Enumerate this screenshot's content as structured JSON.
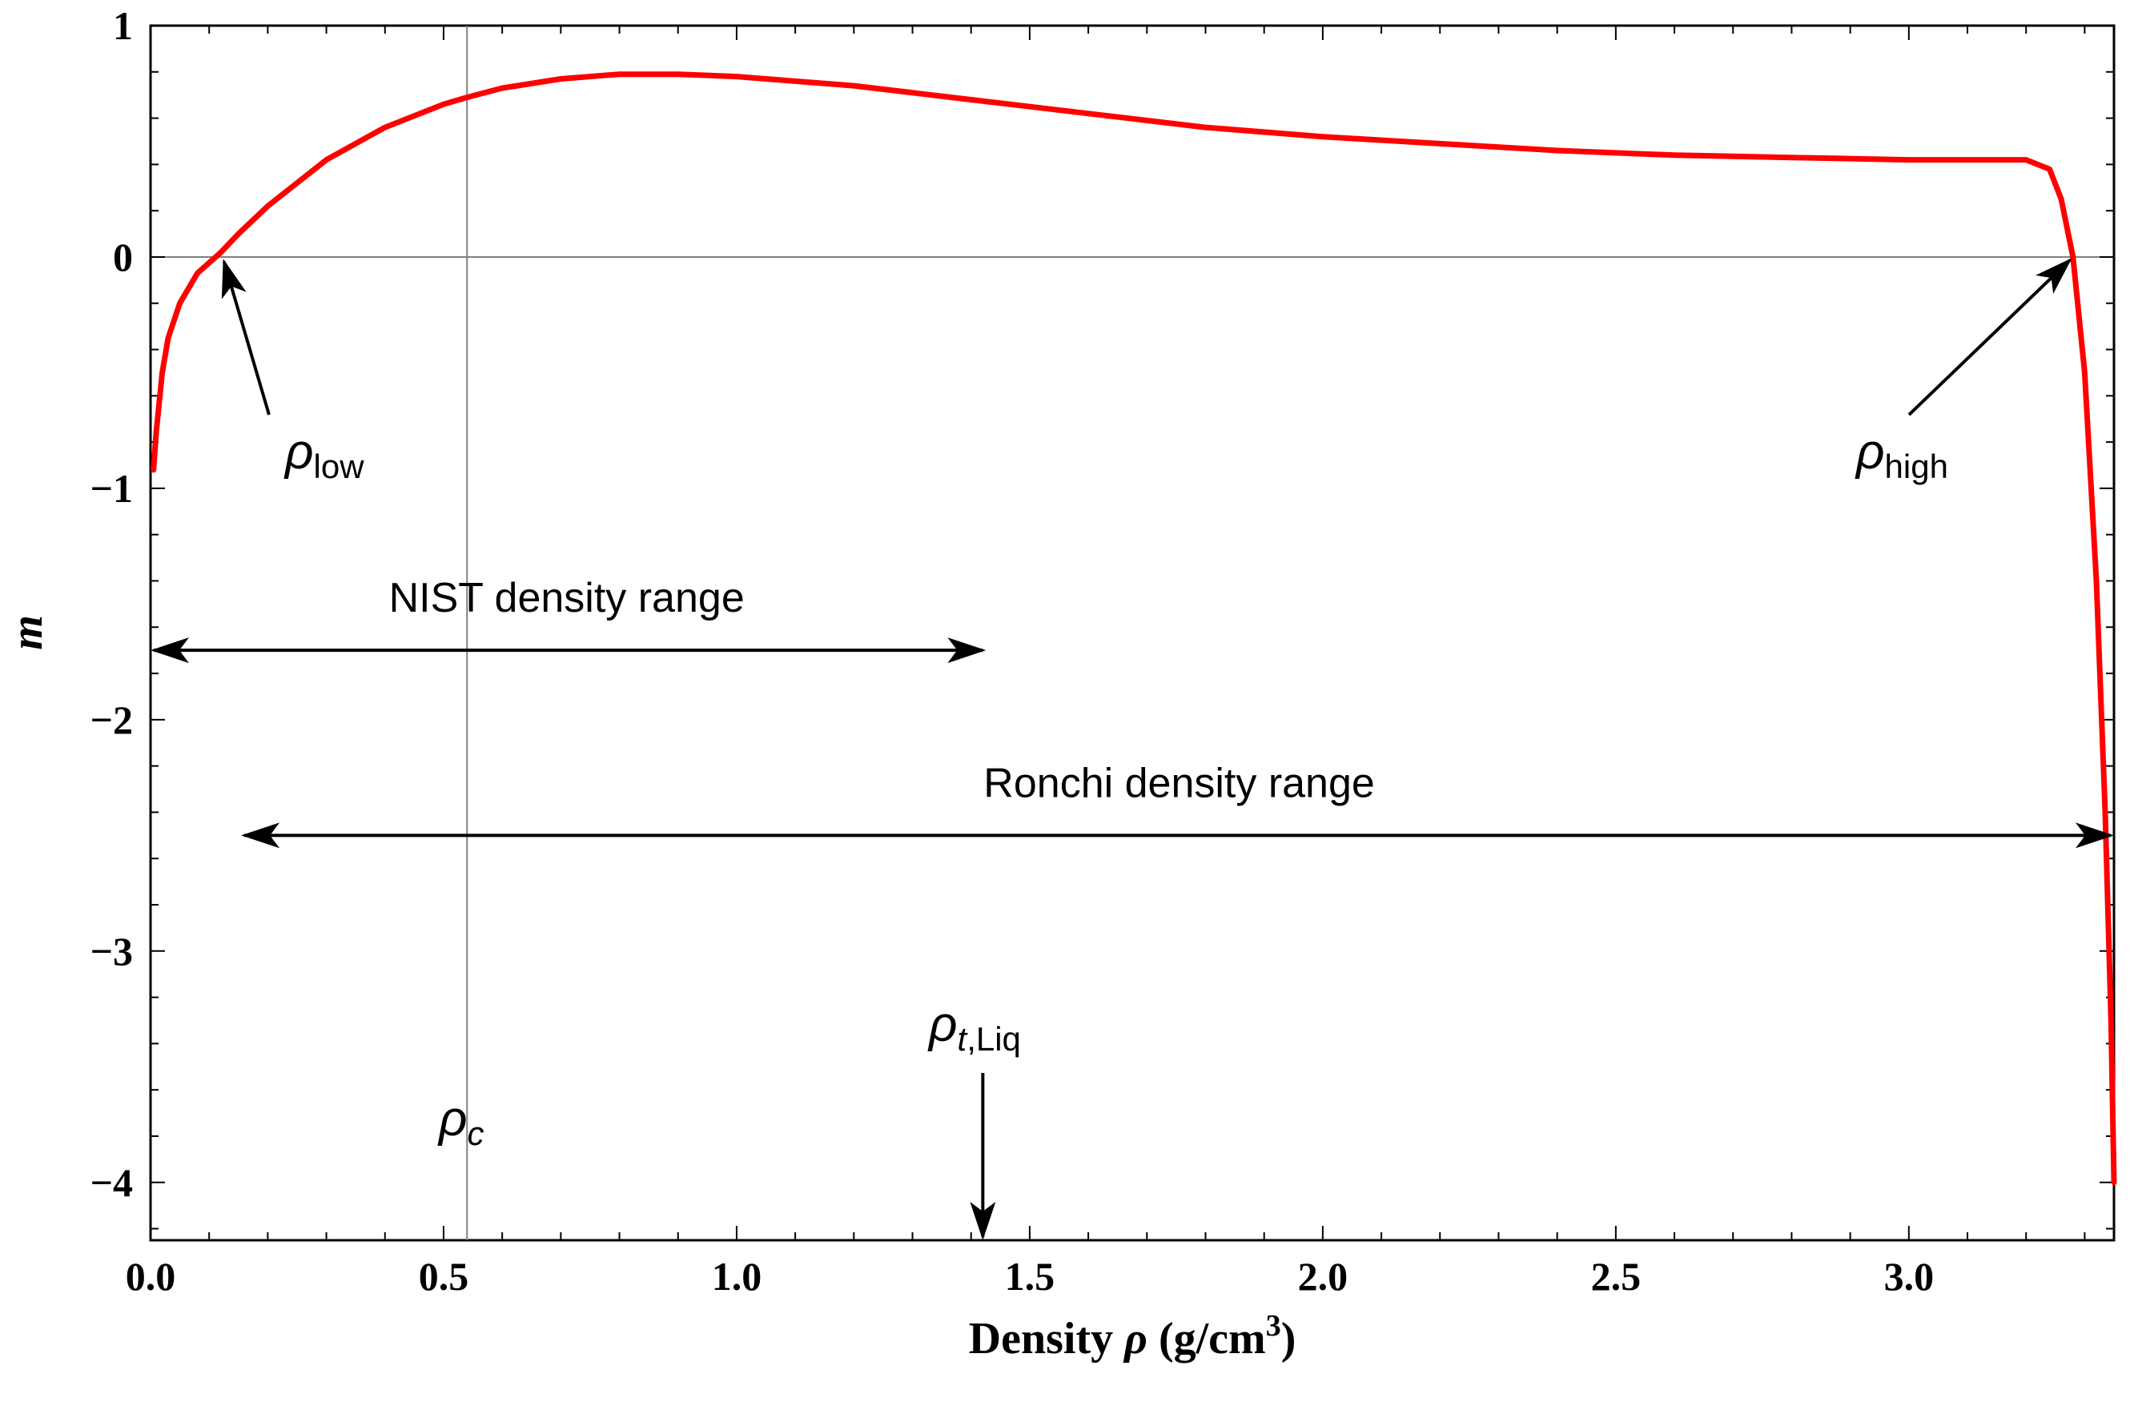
{
  "chart_data": {
    "type": "line",
    "title": "",
    "xlabel": "Density",
    "xlabel_symbol": "ρ",
    "xlabel_units_open": "(g/cm",
    "xlabel_units_exp": "3",
    "xlabel_units_close": ")",
    "ylabel": "m",
    "xlim": [
      0.0,
      3.35
    ],
    "ylim": [
      -4.2,
      1.0
    ],
    "x_ticks": [
      0.0,
      0.5,
      1.0,
      1.5,
      2.0,
      2.5,
      3.0
    ],
    "x_tick_labels": [
      "0.0",
      "0.5",
      "1.0",
      "1.5",
      "2.0",
      "2.5",
      "3.0"
    ],
    "y_ticks": [
      1,
      0,
      -1,
      -2,
      -3,
      -4
    ],
    "y_tick_labels": [
      "1",
      "0",
      "−1",
      "−2",
      "−3",
      "−4"
    ],
    "grid": false,
    "series": [
      {
        "name": "m",
        "color": "#ff0000",
        "x": [
          0.005,
          0.01,
          0.02,
          0.03,
          0.05,
          0.08,
          0.12,
          0.15,
          0.2,
          0.3,
          0.4,
          0.5,
          0.54,
          0.6,
          0.7,
          0.8,
          0.9,
          1.0,
          1.2,
          1.4,
          1.6,
          1.8,
          2.0,
          2.2,
          2.4,
          2.6,
          2.8,
          3.0,
          3.1,
          3.2,
          3.24,
          3.26,
          3.28,
          3.3,
          3.32,
          3.335,
          3.345,
          3.35
        ],
        "y": [
          -0.92,
          -0.75,
          -0.5,
          -0.35,
          -0.2,
          -0.07,
          0.02,
          0.1,
          0.22,
          0.42,
          0.56,
          0.66,
          0.69,
          0.73,
          0.77,
          0.79,
          0.79,
          0.78,
          0.74,
          0.68,
          0.62,
          0.56,
          0.52,
          0.49,
          0.46,
          0.44,
          0.43,
          0.42,
          0.42,
          0.42,
          0.38,
          0.25,
          0.0,
          -0.5,
          -1.4,
          -2.4,
          -3.3,
          -4.0
        ]
      }
    ],
    "reference_lines": [
      {
        "orientation": "horizontal",
        "value": 0,
        "color": "#808080"
      },
      {
        "orientation": "vertical",
        "value": 0.54,
        "color": "#808080"
      }
    ],
    "annotations": {
      "rho_low": {
        "symbol": "ρ",
        "subscript": "low",
        "point_x": 0.12,
        "point_y": 0.0
      },
      "rho_high": {
        "symbol": "ρ",
        "subscript": "high",
        "point_x": 3.28,
        "point_y": 0.0
      },
      "rho_c": {
        "symbol": "ρ",
        "subscript": "c",
        "x": 0.54
      },
      "rho_t_liq": {
        "symbol": "ρ",
        "subscript_italic": "t",
        "subscript_rest": ",Liq",
        "x": 1.42
      },
      "nist_range": {
        "label": "NIST density range",
        "x_start": 0.0,
        "x_end": 1.42,
        "y": -1.7
      },
      "ronchi_range": {
        "label": "Ronchi density range",
        "x_start": 0.16,
        "x_end": 3.35,
        "y": -2.5
      }
    }
  }
}
